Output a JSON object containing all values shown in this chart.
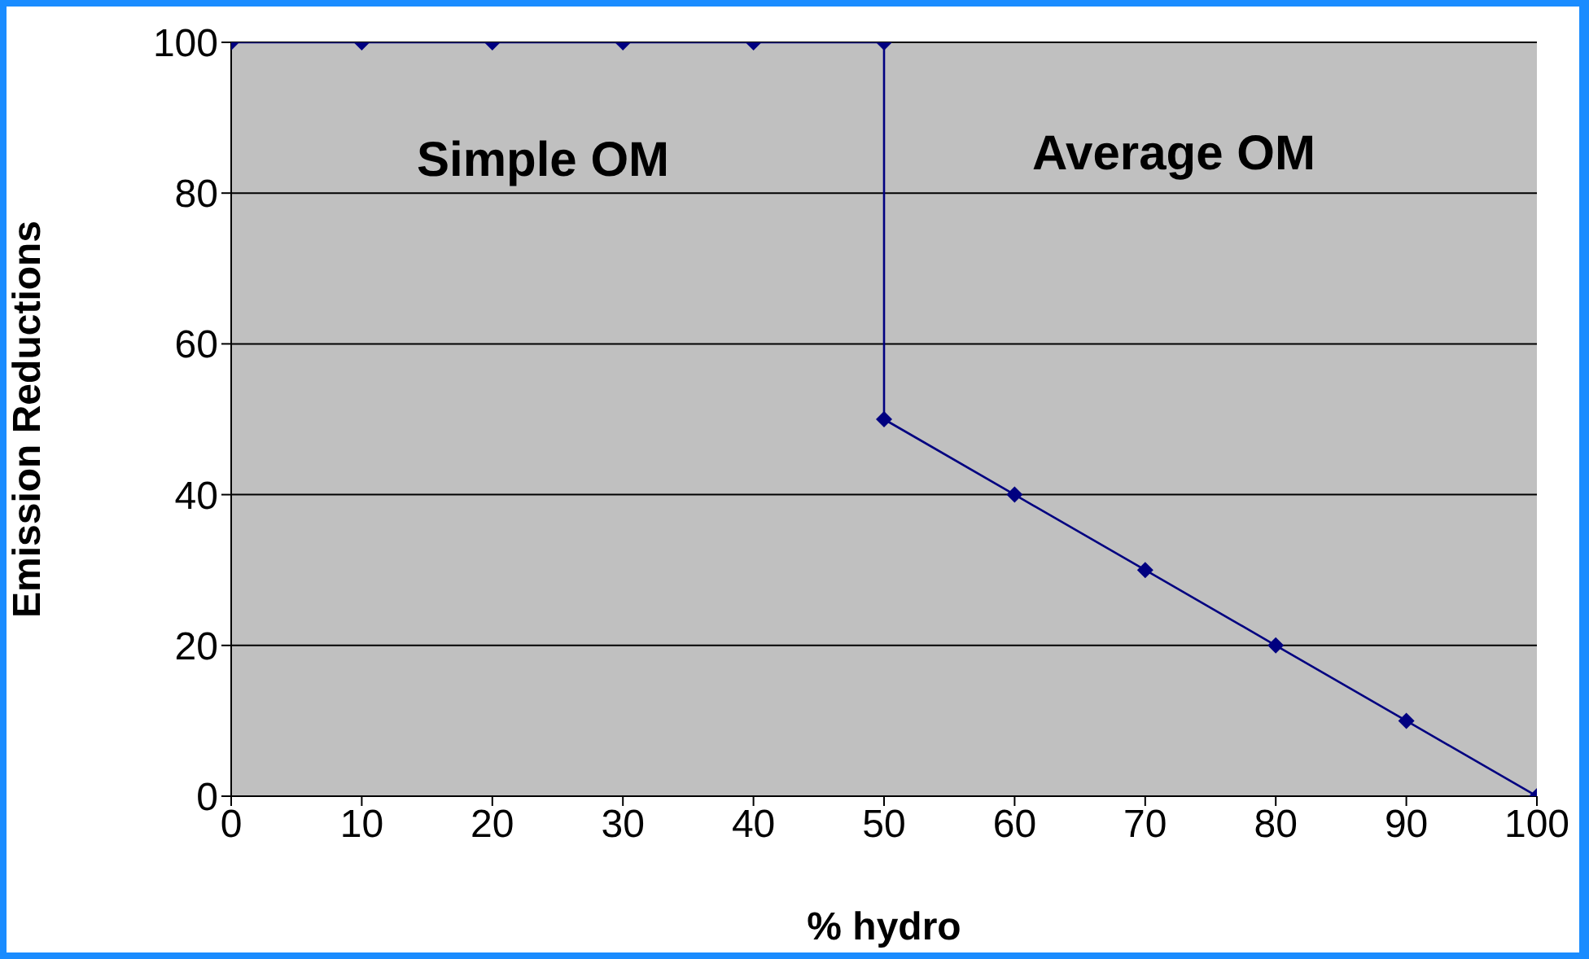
{
  "chart_data": {
    "type": "line",
    "xlabel": "% hydro",
    "ylabel": "Emission Reductions",
    "x": [
      0,
      10,
      20,
      30,
      40,
      50,
      50,
      60,
      70,
      80,
      90,
      100
    ],
    "series": [
      {
        "color": "#000080",
        "values": [
          100,
          100,
          100,
          100,
          100,
          100,
          50,
          40,
          30,
          20,
          10,
          0
        ]
      }
    ],
    "xlim": [
      0,
      100
    ],
    "xticks": [
      0,
      10,
      20,
      30,
      40,
      50,
      60,
      70,
      80,
      90,
      100
    ],
    "ylim": [
      0,
      100
    ],
    "yticks": [
      0,
      20,
      40,
      60,
      80,
      100
    ],
    "grid": "y",
    "legend": false,
    "marker": "diamond",
    "line_style": "solid",
    "annotations": [
      "Simple OM",
      "Average OM"
    ]
  }
}
